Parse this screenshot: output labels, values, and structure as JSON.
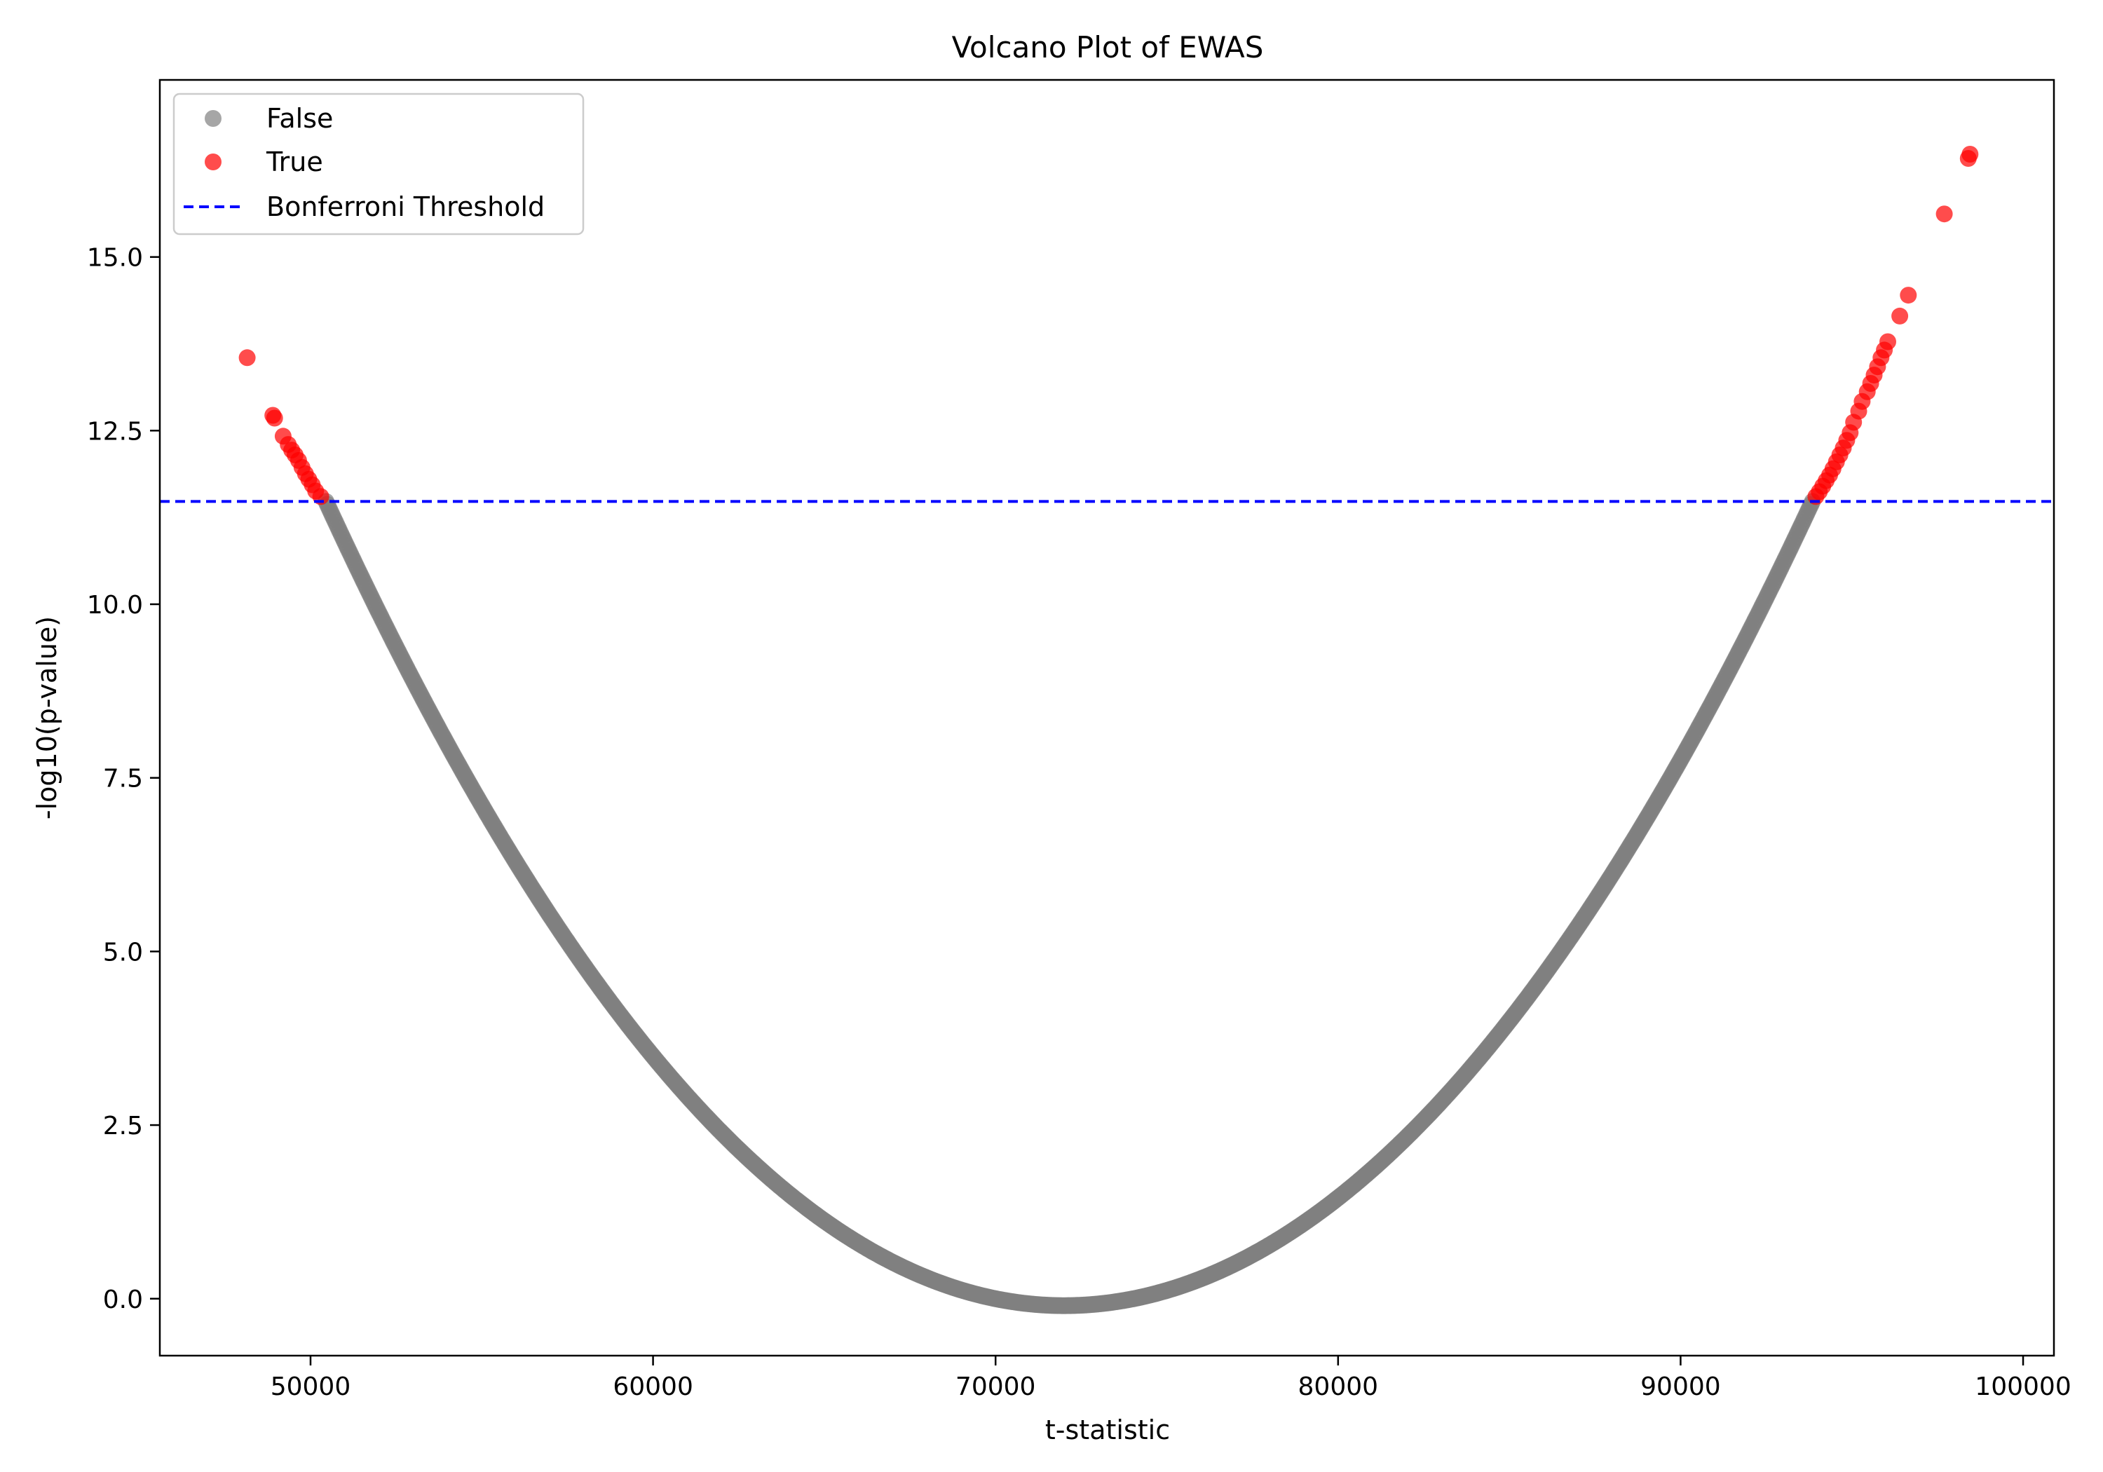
{
  "chart_data": {
    "type": "scatter",
    "title": "Volcano Plot of EWAS",
    "xlabel": "t-statistic",
    "ylabel": "-log10(p-value)",
    "xlim": [
      45600,
      100900
    ],
    "ylim": [
      -0.82,
      17.55
    ],
    "x_ticks": [
      50000,
      60000,
      70000,
      80000,
      90000,
      100000
    ],
    "y_ticks": [
      0.0,
      2.5,
      5.0,
      7.5,
      10.0,
      12.5,
      15.0
    ],
    "x_tick_labels": [
      "50000",
      "60000",
      "70000",
      "80000",
      "90000",
      "100000"
    ],
    "y_tick_labels": [
      "0.0",
      "2.5",
      "5.0",
      "7.5",
      "10.0",
      "12.5",
      "15.0"
    ],
    "grid": false,
    "legend_position": "upper-left",
    "threshold": {
      "name": "Bonferroni Threshold",
      "y": 11.48,
      "color": "#0000ff",
      "style": "dashed"
    },
    "series": [
      {
        "name": "False",
        "color": "#808080",
        "description_curve": {
          "x_range": [
            50450,
            93850
          ],
          "vertex_x": 72000,
          "vertex_y": -0.1,
          "left_anchor": [
            50450,
            11.48
          ],
          "right_anchor": [
            93850,
            11.48
          ]
        }
      },
      {
        "name": "True",
        "color": "#ff0000",
        "points": [
          [
            48150,
            13.55
          ],
          [
            48900,
            12.72
          ],
          [
            48950,
            12.68
          ],
          [
            49200,
            12.42
          ],
          [
            49350,
            12.3
          ],
          [
            49450,
            12.22
          ],
          [
            49550,
            12.15
          ],
          [
            49650,
            12.07
          ],
          [
            49750,
            11.97
          ],
          [
            49850,
            11.88
          ],
          [
            49950,
            11.8
          ],
          [
            50050,
            11.72
          ],
          [
            50150,
            11.63
          ],
          [
            50300,
            11.55
          ],
          [
            93950,
            11.55
          ],
          [
            94050,
            11.62
          ],
          [
            94150,
            11.7
          ],
          [
            94250,
            11.78
          ],
          [
            94350,
            11.86
          ],
          [
            94450,
            11.95
          ],
          [
            94550,
            12.05
          ],
          [
            94650,
            12.15
          ],
          [
            94750,
            12.25
          ],
          [
            94850,
            12.36
          ],
          [
            94950,
            12.47
          ],
          [
            95050,
            12.62
          ],
          [
            95200,
            12.78
          ],
          [
            95300,
            12.92
          ],
          [
            95450,
            13.06
          ],
          [
            95550,
            13.18
          ],
          [
            95650,
            13.3
          ],
          [
            95750,
            13.42
          ],
          [
            95850,
            13.55
          ],
          [
            95950,
            13.66
          ],
          [
            96050,
            13.78
          ],
          [
            96400,
            14.15
          ],
          [
            96650,
            14.45
          ],
          [
            97700,
            15.62
          ],
          [
            98400,
            16.42
          ],
          [
            98450,
            16.48
          ]
        ]
      }
    ]
  }
}
